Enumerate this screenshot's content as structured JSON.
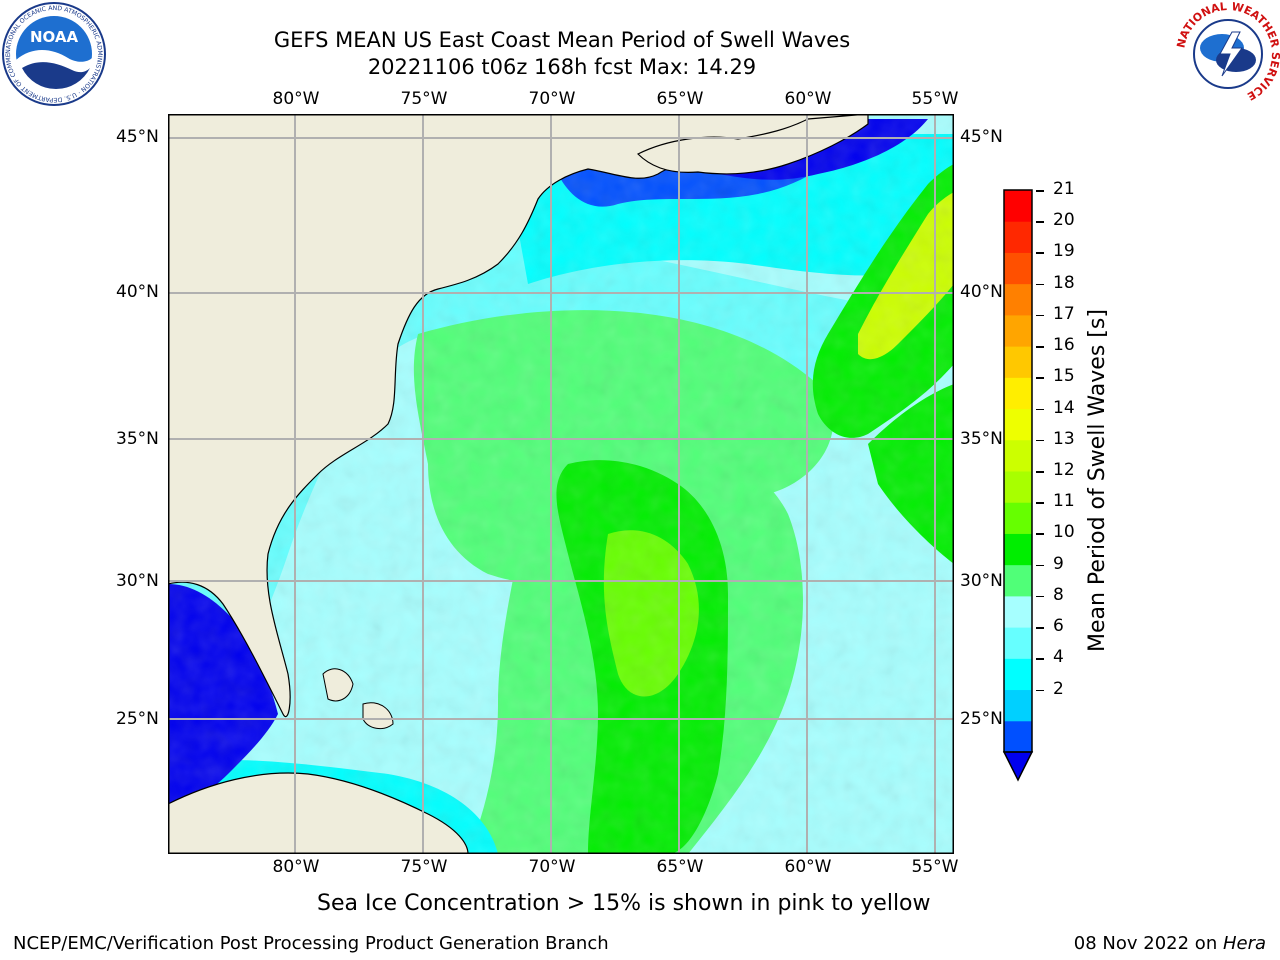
{
  "header": {
    "title_line1": "GEFS MEAN US East Coast Mean Period of Swell Waves",
    "title_line2": "20221106 t06z 168h fcst   Max: 14.29"
  },
  "logos": {
    "noaa_text": "NOAA",
    "noaa_ring": "NATIONAL OCEANIC AND ATMOSPHERIC ADMINISTRATION · U.S. DEPARTMENT OF COMMERCE",
    "nws_ring": "NATIONAL WEATHER SERVICE"
  },
  "map": {
    "lon_labels": [
      "80°W",
      "75°W",
      "70°W",
      "65°W",
      "60°W",
      "55°W"
    ],
    "lat_labels": [
      "45°N",
      "40°N",
      "35°N",
      "30°N",
      "25°N"
    ],
    "colors": {
      "land": "#efeddc",
      "grid": "#b0b0b0",
      "coast": "#000000"
    }
  },
  "colorbar": {
    "title": "Mean Period of Swell Waves [s]",
    "ticks": [
      "21",
      "20",
      "19",
      "18",
      "17",
      "16",
      "15",
      "14",
      "13",
      "12",
      "11",
      "10",
      "9",
      "8",
      "6",
      "4",
      "2"
    ],
    "colors_bottom_to_top": [
      "#0050ff",
      "#00d0ff",
      "#00ffff",
      "#66ffff",
      "#a6ffff",
      "#50ff78",
      "#00ee00",
      "#66ff00",
      "#a8ff00",
      "#ccff00",
      "#eeff00",
      "#ffee00",
      "#ffc800",
      "#ffa500",
      "#ff8000",
      "#ff5000",
      "#ff2800",
      "#ff0000"
    ],
    "extend_color": "#0000ee"
  },
  "caption": "Sea Ice Concentration > 15% is shown in pink to yellow",
  "footer": {
    "left": "NCEP/EMC/Verification Post Processing Product Generation Branch",
    "date": "08 Nov 2022 on ",
    "machine": "Hera"
  }
}
